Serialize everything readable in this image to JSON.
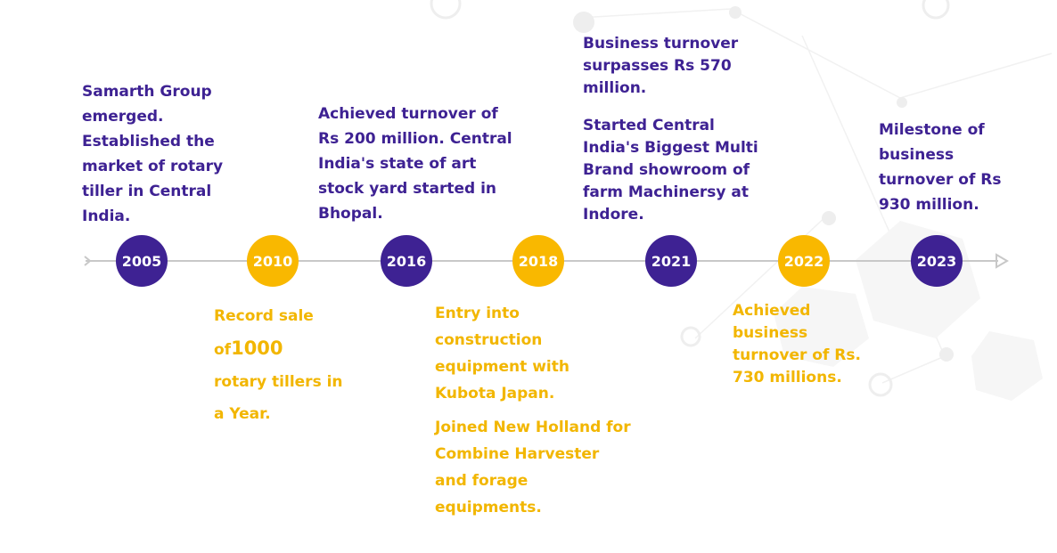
{
  "timeline": {
    "milestones": [
      {
        "year": "2005",
        "lines": [
          "Samarth Group emerged. Established the market of rotary tiller in Central India."
        ]
      },
      {
        "year": "2010",
        "record": {
          "before": "Record sale",
          "of": "of",
          "number": "1000",
          "after": "rotary tillers in a Year."
        }
      },
      {
        "year": "2016",
        "lines": [
          "Achieved turnover of Rs 200 million. Central India's state of art stock yard started in Bhopal."
        ]
      },
      {
        "year": "2018",
        "lines": [
          "Entry into construction equipment with Kubota Japan.",
          "Joined New Holland for  Combine Harvester and forage equipments."
        ]
      },
      {
        "year": "2021",
        "lines": [
          "Business turnover surpasses Rs 570 million.",
          "Started Central India's Biggest Multi Brand showroom of farm Machinersy at Indore."
        ]
      },
      {
        "year": "2022",
        "lines": [
          "Achieved business turnover of Rs. 730 millions."
        ]
      },
      {
        "year": "2023",
        "lines": [
          "Milestone of business turnover of Rs 930 million."
        ]
      }
    ],
    "colors": {
      "purple": "#3e2293",
      "yellow": "#f9b800",
      "line": "#c8c8c8"
    }
  }
}
